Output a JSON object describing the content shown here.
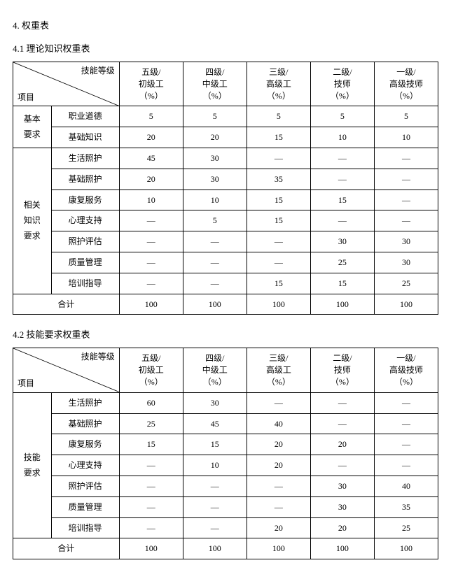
{
  "section_number": "4.",
  "section_title": "权重表",
  "tables": [
    {
      "heading_num": "4.1",
      "heading_text": "理论知识权重表",
      "diag_top": "技能等级",
      "diag_bottom": "项目",
      "columns": [
        {
          "l1": "五级/",
          "l2": "初级工",
          "l3": "（%）"
        },
        {
          "l1": "四级/",
          "l2": "中级工",
          "l3": "（%）"
        },
        {
          "l1": "三级/",
          "l2": "高级工",
          "l3": "（%）"
        },
        {
          "l1": "二级/",
          "l2": "技师",
          "l3": "（%）"
        },
        {
          "l1": "一级/",
          "l2": "高级技师",
          "l3": "（%）"
        }
      ],
      "groups": [
        {
          "label_lines": [
            "基本",
            "要求"
          ],
          "rows": [
            {
              "name": "职业道德",
              "vals": [
                "5",
                "5",
                "5",
                "5",
                "5"
              ]
            },
            {
              "name": "基础知识",
              "vals": [
                "20",
                "20",
                "15",
                "10",
                "10"
              ]
            }
          ]
        },
        {
          "label_lines": [
            "相关",
            "知识",
            "要求"
          ],
          "rows": [
            {
              "name": "生活照护",
              "vals": [
                "45",
                "30",
                "—",
                "—",
                "—"
              ]
            },
            {
              "name": "基础照护",
              "vals": [
                "20",
                "30",
                "35",
                "—",
                "—"
              ]
            },
            {
              "name": "康复服务",
              "vals": [
                "10",
                "10",
                "15",
                "15",
                "—"
              ]
            },
            {
              "name": "心理支持",
              "vals": [
                "—",
                "5",
                "15",
                "—",
                "—"
              ]
            },
            {
              "name": "照护评估",
              "vals": [
                "—",
                "—",
                "—",
                "30",
                "30"
              ]
            },
            {
              "name": "质量管理",
              "vals": [
                "—",
                "—",
                "—",
                "25",
                "30"
              ]
            },
            {
              "name": "培训指导",
              "vals": [
                "—",
                "—",
                "15",
                "15",
                "25"
              ]
            }
          ]
        }
      ],
      "total_label": "合计",
      "total_vals": [
        "100",
        "100",
        "100",
        "100",
        "100"
      ]
    },
    {
      "heading_num": "4.2",
      "heading_text": "技能要求权重表",
      "diag_top": "技能等级",
      "diag_bottom": "项目",
      "columns": [
        {
          "l1": "五级/",
          "l2": "初级工",
          "l3": "（%）"
        },
        {
          "l1": "四级/",
          "l2": "中级工",
          "l3": "（%）"
        },
        {
          "l1": "三级/",
          "l2": "高级工",
          "l3": "（%）"
        },
        {
          "l1": "二级/",
          "l2": "技师",
          "l3": "（%）"
        },
        {
          "l1": "一级/",
          "l2": "高级技师",
          "l3": "（%）"
        }
      ],
      "groups": [
        {
          "label_lines": [
            "技能",
            "要求"
          ],
          "rows": [
            {
              "name": "生活照护",
              "vals": [
                "60",
                "30",
                "—",
                "—",
                "—"
              ]
            },
            {
              "name": "基础照护",
              "vals": [
                "25",
                "45",
                "40",
                "—",
                "—"
              ]
            },
            {
              "name": "康复服务",
              "vals": [
                "15",
                "15",
                "20",
                "20",
                "—"
              ]
            },
            {
              "name": "心理支持",
              "vals": [
                "—",
                "10",
                "20",
                "—",
                "—"
              ]
            },
            {
              "name": "照护评估",
              "vals": [
                "—",
                "—",
                "—",
                "30",
                "40"
              ]
            },
            {
              "name": "质量管理",
              "vals": [
                "—",
                "—",
                "—",
                "30",
                "35"
              ]
            },
            {
              "name": "培训指导",
              "vals": [
                "—",
                "—",
                "20",
                "20",
                "25"
              ]
            }
          ]
        }
      ],
      "total_label": "合计",
      "total_vals": [
        "100",
        "100",
        "100",
        "100",
        "100"
      ]
    }
  ]
}
